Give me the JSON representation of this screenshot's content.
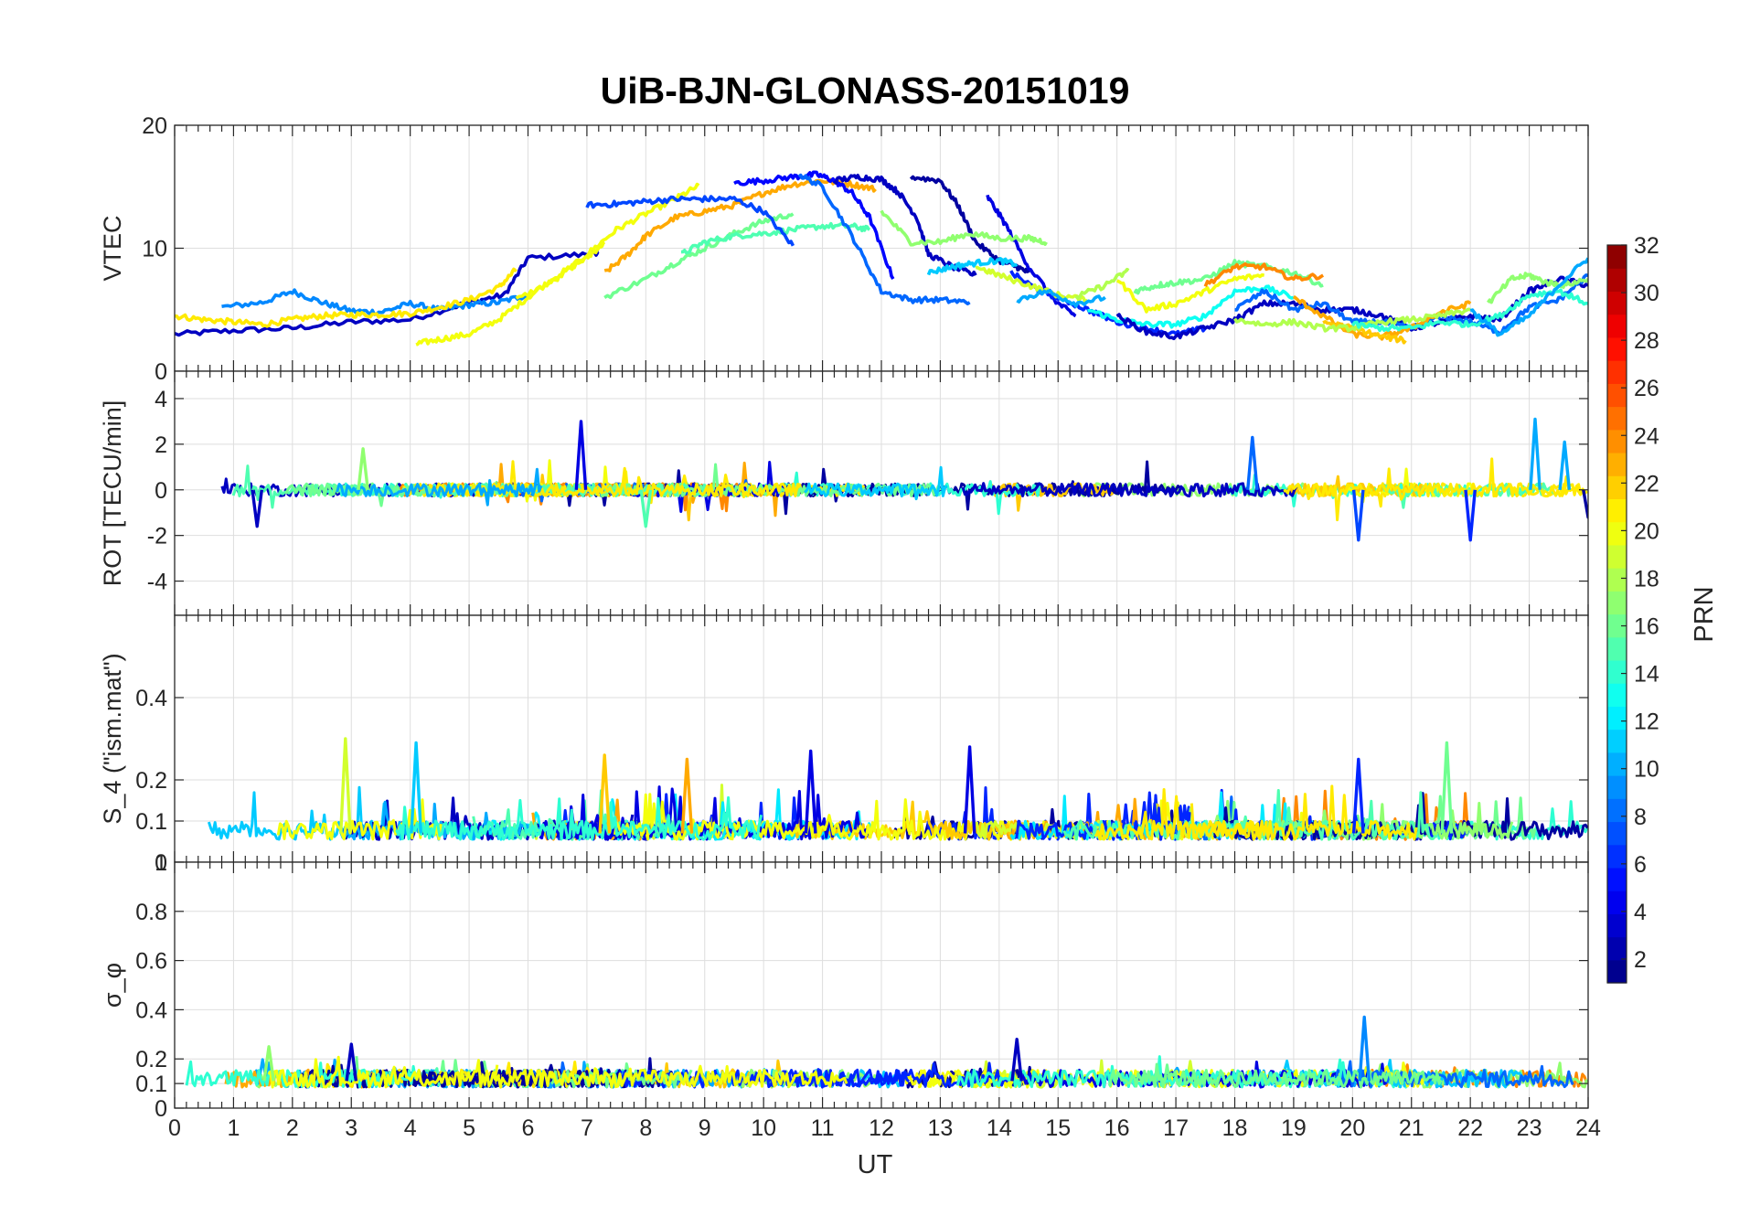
{
  "chart_data": {
    "type": "line",
    "title": "UiB-BJN-GLONASS-20151019",
    "xlabel": "UT",
    "xlim": [
      0,
      24
    ],
    "xticks": [
      "0",
      "1",
      "2",
      "3",
      "4",
      "5",
      "6",
      "7",
      "8",
      "9",
      "10",
      "11",
      "12",
      "13",
      "14",
      "15",
      "16",
      "17",
      "18",
      "19",
      "20",
      "21",
      "22",
      "23",
      "24"
    ],
    "grid": true,
    "colormap": "jet",
    "colorbar": {
      "label": "PRN",
      "range": [
        1,
        32
      ],
      "ticks": [
        "2",
        "4",
        "6",
        "8",
        "10",
        "12",
        "14",
        "16",
        "18",
        "20",
        "22",
        "24",
        "26",
        "28",
        "30",
        "32"
      ]
    },
    "panels": [
      {
        "ylabel": "VTEC",
        "ylim": [
          0,
          20
        ],
        "yticks": [
          "0",
          "10",
          "20"
        ],
        "series": [
          {
            "prn": 3,
            "x": [
              0,
              1,
              2,
              3,
              4,
              5,
              5.6,
              6,
              7,
              7.2
            ],
            "y": [
              3.0,
              3.3,
              3.5,
              4.0,
              4.2,
              5.6,
              6.2,
              9.2,
              9.5,
              9.7
            ]
          },
          {
            "prn": 9,
            "x": [
              0.8,
              1.5,
              2,
              2.5,
              3,
              3.5,
              4,
              4.5,
              5,
              5.5,
              6
            ],
            "y": [
              5.2,
              5.6,
              6.5,
              5.6,
              4.9,
              4.8,
              5.5,
              5.0,
              5.4,
              5.6,
              6.2
            ]
          },
          {
            "prn": 21,
            "x": [
              0,
              0.5,
              1,
              1.5,
              2,
              2.5,
              3,
              3.5,
              4,
              4.5,
              5,
              5.5,
              5.8
            ],
            "y": [
              4.5,
              4.2,
              4.0,
              3.8,
              4.2,
              4.5,
              4.6,
              4.6,
              4.7,
              5.2,
              5.8,
              6.8,
              8.3
            ]
          },
          {
            "prn": 20,
            "x": [
              4.1,
              4.5,
              5,
              5.5,
              6,
              6.5,
              7,
              7.3
            ],
            "y": [
              2.2,
              2.6,
              3.0,
              4.2,
              6.0,
              7.8,
              9.2,
              10.5
            ]
          },
          {
            "prn": 20,
            "x": [
              5.8,
              6.5,
              7,
              7.5,
              8,
              8.5,
              8.9
            ],
            "y": [
              5.8,
              7.5,
              9.5,
              11.5,
              12.8,
              14.0,
              15.1
            ]
          },
          {
            "prn": 23,
            "x": [
              7.3,
              7.7,
              8,
              8.5,
              9,
              9.5,
              10,
              10.5,
              11,
              11.5,
              11.9
            ],
            "y": [
              8.0,
              9.5,
              11.0,
              12.5,
              13.0,
              13.5,
              14.5,
              15.2,
              15.5,
              15.2,
              14.8
            ]
          },
          {
            "prn": 16,
            "x": [
              7.3,
              8,
              8.5,
              9,
              9.5,
              10,
              10.5
            ],
            "y": [
              6.0,
              7.5,
              8.8,
              10.0,
              11.2,
              12.2,
              12.8
            ]
          },
          {
            "prn": 15,
            "x": [
              8.6,
              9,
              9.5,
              10,
              10.5,
              11,
              11.5,
              11.8
            ],
            "y": [
              9.5,
              10.5,
              11.0,
              11.2,
              11.5,
              11.8,
              11.8,
              11.5
            ]
          },
          {
            "prn": 7,
            "x": [
              7.0,
              7.5,
              8,
              8.5,
              9,
              9.5,
              10,
              10.5
            ],
            "y": [
              13.5,
              13.6,
              13.8,
              14.0,
              14.0,
              14.0,
              13.0,
              10.2
            ]
          },
          {
            "prn": 5,
            "x": [
              9.5,
              10,
              10.5,
              10.9,
              11.2,
              11.5,
              11.8,
              12.2
            ],
            "y": [
              15.3,
              15.5,
              15.8,
              16.0,
              15.5,
              14.5,
              12.5,
              7.5
            ]
          },
          {
            "prn": 8,
            "x": [
              10.6,
              11,
              11.5,
              12,
              12.5,
              13,
              13.5
            ],
            "y": [
              16.0,
              15.0,
              11.0,
              6.5,
              5.8,
              5.8,
              5.6
            ]
          },
          {
            "prn": 3,
            "x": [
              11.2,
              11.6,
              12,
              12.3,
              12.6,
              12.8,
              13.2,
              13.6
            ],
            "y": [
              15.5,
              15.8,
              15.6,
              14.5,
              12.5,
              9.5,
              8.5,
              7.8
            ]
          },
          {
            "prn": 2,
            "x": [
              12.5,
              13,
              13.3,
              13.6,
              14,
              14.3,
              14.5
            ],
            "y": [
              15.8,
              15.5,
              13.5,
              10.5,
              9.0,
              8.5,
              8.0
            ]
          },
          {
            "prn": 4,
            "x": [
              13.8,
              14.1,
              14.5,
              15,
              15.3
            ],
            "y": [
              14.2,
              12.0,
              8.5,
              5.5,
              4.5
            ]
          },
          {
            "prn": 17,
            "x": [
              12,
              12.5,
              13,
              13.5,
              14,
              14.5,
              14.8
            ],
            "y": [
              13.0,
              10.5,
              10.5,
              11.2,
              10.8,
              10.8,
              10.5
            ]
          },
          {
            "prn": 11,
            "x": [
              12.8,
              13.2,
              13.6,
              14,
              14.3
            ],
            "y": [
              8.0,
              8.5,
              8.8,
              9.0,
              8.7
            ]
          },
          {
            "prn": 6,
            "x": [
              14.2,
              14.7,
              15,
              15.5,
              16,
              16.5,
              17,
              17.5
            ],
            "y": [
              8.0,
              6.5,
              6.0,
              5.0,
              4.0,
              3.5,
              3.0,
              3.5
            ]
          },
          {
            "prn": 19,
            "x": [
              13.6,
              14,
              14.5,
              15,
              15.5
            ],
            "y": [
              8.5,
              7.8,
              7.0,
              6.2,
              5.8
            ]
          },
          {
            "prn": 10,
            "x": [
              14.3,
              14.8,
              15.3,
              15.8
            ],
            "y": [
              5.8,
              6.5,
              5.5,
              6.0
            ]
          },
          {
            "prn": 18,
            "x": [
              15.3,
              15.8,
              16.2
            ],
            "y": [
              6.0,
              7.0,
              8.2
            ]
          },
          {
            "prn": 13,
            "x": [
              15.5,
              16,
              16.5,
              17,
              17.5,
              18,
              18.5,
              19
            ],
            "y": [
              5.0,
              4.2,
              3.8,
              3.8,
              4.5,
              6.5,
              6.8,
              6.0
            ]
          },
          {
            "prn": 20,
            "x": [
              16,
              16.5,
              17,
              17.5,
              18,
              18.5
            ],
            "y": [
              7.5,
              5.0,
              5.5,
              6.5,
              7.5,
              7.8
            ]
          },
          {
            "prn": 16,
            "x": [
              16.3,
              16.7,
              17,
              17.5,
              18,
              18.5,
              19,
              19.5
            ],
            "y": [
              6.5,
              7.0,
              7.2,
              7.5,
              8.8,
              8.5,
              8.0,
              7.0
            ]
          },
          {
            "prn": 24,
            "x": [
              17.5,
              18,
              18.5,
              19,
              19.5
            ],
            "y": [
              7.0,
              8.5,
              8.5,
              7.5,
              7.8
            ]
          },
          {
            "prn": 3,
            "x": [
              16,
              16.5,
              17,
              17.5,
              18,
              18.5,
              19,
              19.5,
              20,
              20.5,
              21,
              21.5,
              22,
              22.5,
              23,
              23.5,
              24
            ],
            "y": [
              4.5,
              3.2,
              2.8,
              3.5,
              4.2,
              5.5,
              5.5,
              5.0,
              5.0,
              4.5,
              3.5,
              4.0,
              4.5,
              4.2,
              6.5,
              7.5,
              7.0
            ]
          },
          {
            "prn": 8,
            "x": [
              18,
              18.5,
              19,
              19.5,
              20,
              20.5,
              21,
              21.5,
              22,
              22.5,
              23,
              23.5,
              24
            ],
            "y": [
              5.0,
              6.5,
              5.0,
              5.5,
              4.0,
              4.0,
              3.5,
              4.5,
              4.0,
              3.2,
              5.2,
              5.8,
              7.8
            ]
          },
          {
            "prn": 23,
            "x": [
              19,
              19.5,
              20,
              20.5,
              21,
              21.5,
              22
            ],
            "y": [
              6.0,
              4.5,
              3.0,
              2.8,
              3.5,
              4.8,
              5.5
            ]
          },
          {
            "prn": 22,
            "x": [
              19.5,
              20,
              20.5,
              20.9
            ],
            "y": [
              4.0,
              3.5,
              2.8,
              2.5
            ]
          },
          {
            "prn": 18,
            "x": [
              18,
              18.5,
              19,
              19.5,
              20,
              20.5,
              21,
              21.5,
              22
            ],
            "y": [
              4.2,
              3.8,
              4.0,
              3.5,
              3.5,
              4.0,
              4.2,
              4.5,
              5.0
            ]
          },
          {
            "prn": 14,
            "x": [
              20,
              20.5,
              21,
              21.5,
              22,
              22.5,
              23,
              23.5,
              24
            ],
            "y": [
              3.8,
              3.5,
              3.5,
              4.0,
              3.8,
              4.5,
              6.2,
              6.5,
              5.5
            ]
          },
          {
            "prn": 17,
            "x": [
              22.3,
              22.7,
              23,
              23.3,
              23.6,
              24
            ],
            "y": [
              5.5,
              7.5,
              7.8,
              7.2,
              7.0,
              7.5
            ]
          },
          {
            "prn": 10,
            "x": [
              22,
              22.5,
              23,
              23.5,
              24
            ],
            "y": [
              5.0,
              3.0,
              4.5,
              7.0,
              9.2
            ]
          }
        ]
      },
      {
        "ylabel": "ROT [TECU/min]",
        "ylim": [
          -5.5,
          5.2
        ],
        "yticks": [
          "-4",
          "-2",
          "0",
          "2",
          "4"
        ],
        "note_spikes": [
          {
            "x": 6.9,
            "y": 3.0,
            "prn": 4
          },
          {
            "x": 3.2,
            "y": 1.8,
            "prn": 17
          },
          {
            "x": 23.1,
            "y": 3.1,
            "prn": 10
          },
          {
            "x": 18.3,
            "y": 2.3,
            "prn": 8
          },
          {
            "x": 20.1,
            "y": -2.2,
            "prn": 7
          },
          {
            "x": 1.4,
            "y": -1.6,
            "prn": 3
          },
          {
            "x": 8.0,
            "y": -1.6,
            "prn": 15
          },
          {
            "x": 22.0,
            "y": -2.2,
            "prn": 6
          },
          {
            "x": 23.6,
            "y": 2.1,
            "prn": 10
          },
          {
            "x": 24.0,
            "y": -1.2,
            "prn": 2
          }
        ]
      },
      {
        "ylabel": "S_4 (\"ism.mat\")",
        "ylim": [
          0,
          0.6
        ],
        "yticks": [
          "0",
          "0.1",
          "0.2",
          "0.4"
        ],
        "note_peaks": [
          {
            "x": 2.9,
            "y": 0.3,
            "prn": 19
          },
          {
            "x": 4.1,
            "y": 0.29,
            "prn": 11
          },
          {
            "x": 10.8,
            "y": 0.27,
            "prn": 4
          },
          {
            "x": 13.5,
            "y": 0.28,
            "prn": 4
          },
          {
            "x": 21.6,
            "y": 0.29,
            "prn": 16
          },
          {
            "x": 8.7,
            "y": 0.25,
            "prn": 23
          },
          {
            "x": 7.3,
            "y": 0.26,
            "prn": 22
          },
          {
            "x": 20.1,
            "y": 0.25,
            "prn": 6
          }
        ]
      },
      {
        "ylabel": "σ_φ",
        "ylim": [
          0,
          1
        ],
        "yticks": [
          "0",
          "0.1",
          "0.2",
          "0.4",
          "0.6",
          "0.8",
          "1"
        ],
        "note_peaks": [
          {
            "x": 20.2,
            "y": 0.37,
            "prn": 9
          },
          {
            "x": 14.3,
            "y": 0.28,
            "prn": 3
          },
          {
            "x": 3.0,
            "y": 0.26,
            "prn": 3
          },
          {
            "x": 1.6,
            "y": 0.25,
            "prn": 17
          }
        ]
      }
    ]
  }
}
